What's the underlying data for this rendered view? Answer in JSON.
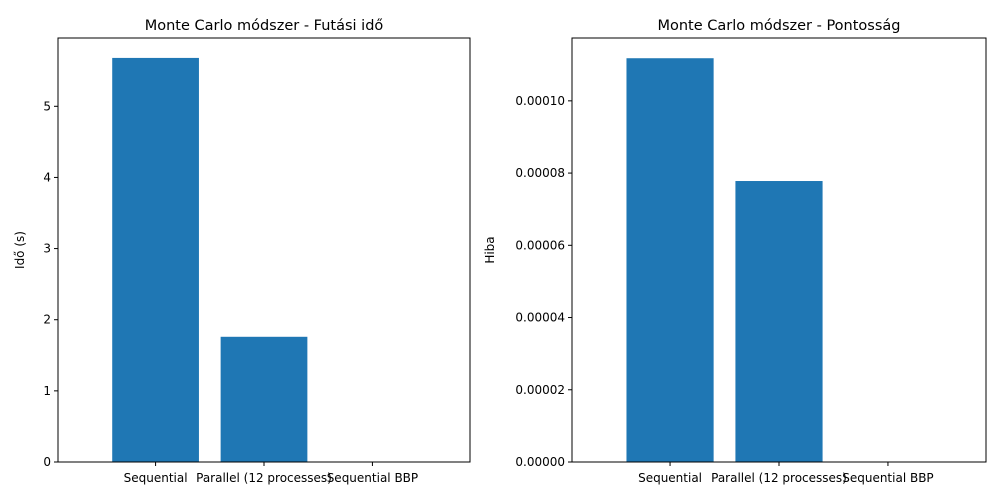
{
  "chart_data": [
    {
      "type": "bar",
      "title": "Monte Carlo módszer - Futási idő",
      "xlabel": "",
      "ylabel": "Idő (s)",
      "categories": [
        "Sequential",
        "Parallel (12 processes)",
        "Sequential BBP"
      ],
      "values": [
        5.68,
        1.76,
        0.0
      ],
      "ylim": [
        0,
        5.96
      ],
      "yticks": [
        0,
        1,
        2,
        3,
        4,
        5
      ],
      "ytick_labels": [
        "0",
        "1",
        "2",
        "3",
        "4",
        "5"
      ],
      "bar_color": "#1f77b4",
      "grid": false,
      "legend": "none"
    },
    {
      "type": "bar",
      "title": "Monte Carlo módszer - Pontosság",
      "xlabel": "",
      "ylabel": "Hiba",
      "categories": [
        "Sequential",
        "Parallel (12 processes)",
        "Sequential BBP"
      ],
      "values": [
        0.0001118,
        7.78e-05,
        0.0
      ],
      "ylim": [
        0,
        0.0001174
      ],
      "yticks": [
        0,
        2e-05,
        4e-05,
        6e-05,
        8e-05,
        0.0001
      ],
      "ytick_labels": [
        "0.00000",
        "0.00002",
        "0.00004",
        "0.00006",
        "0.00008",
        "0.00010"
      ],
      "bar_color": "#1f77b4",
      "grid": false,
      "legend": "none"
    }
  ]
}
